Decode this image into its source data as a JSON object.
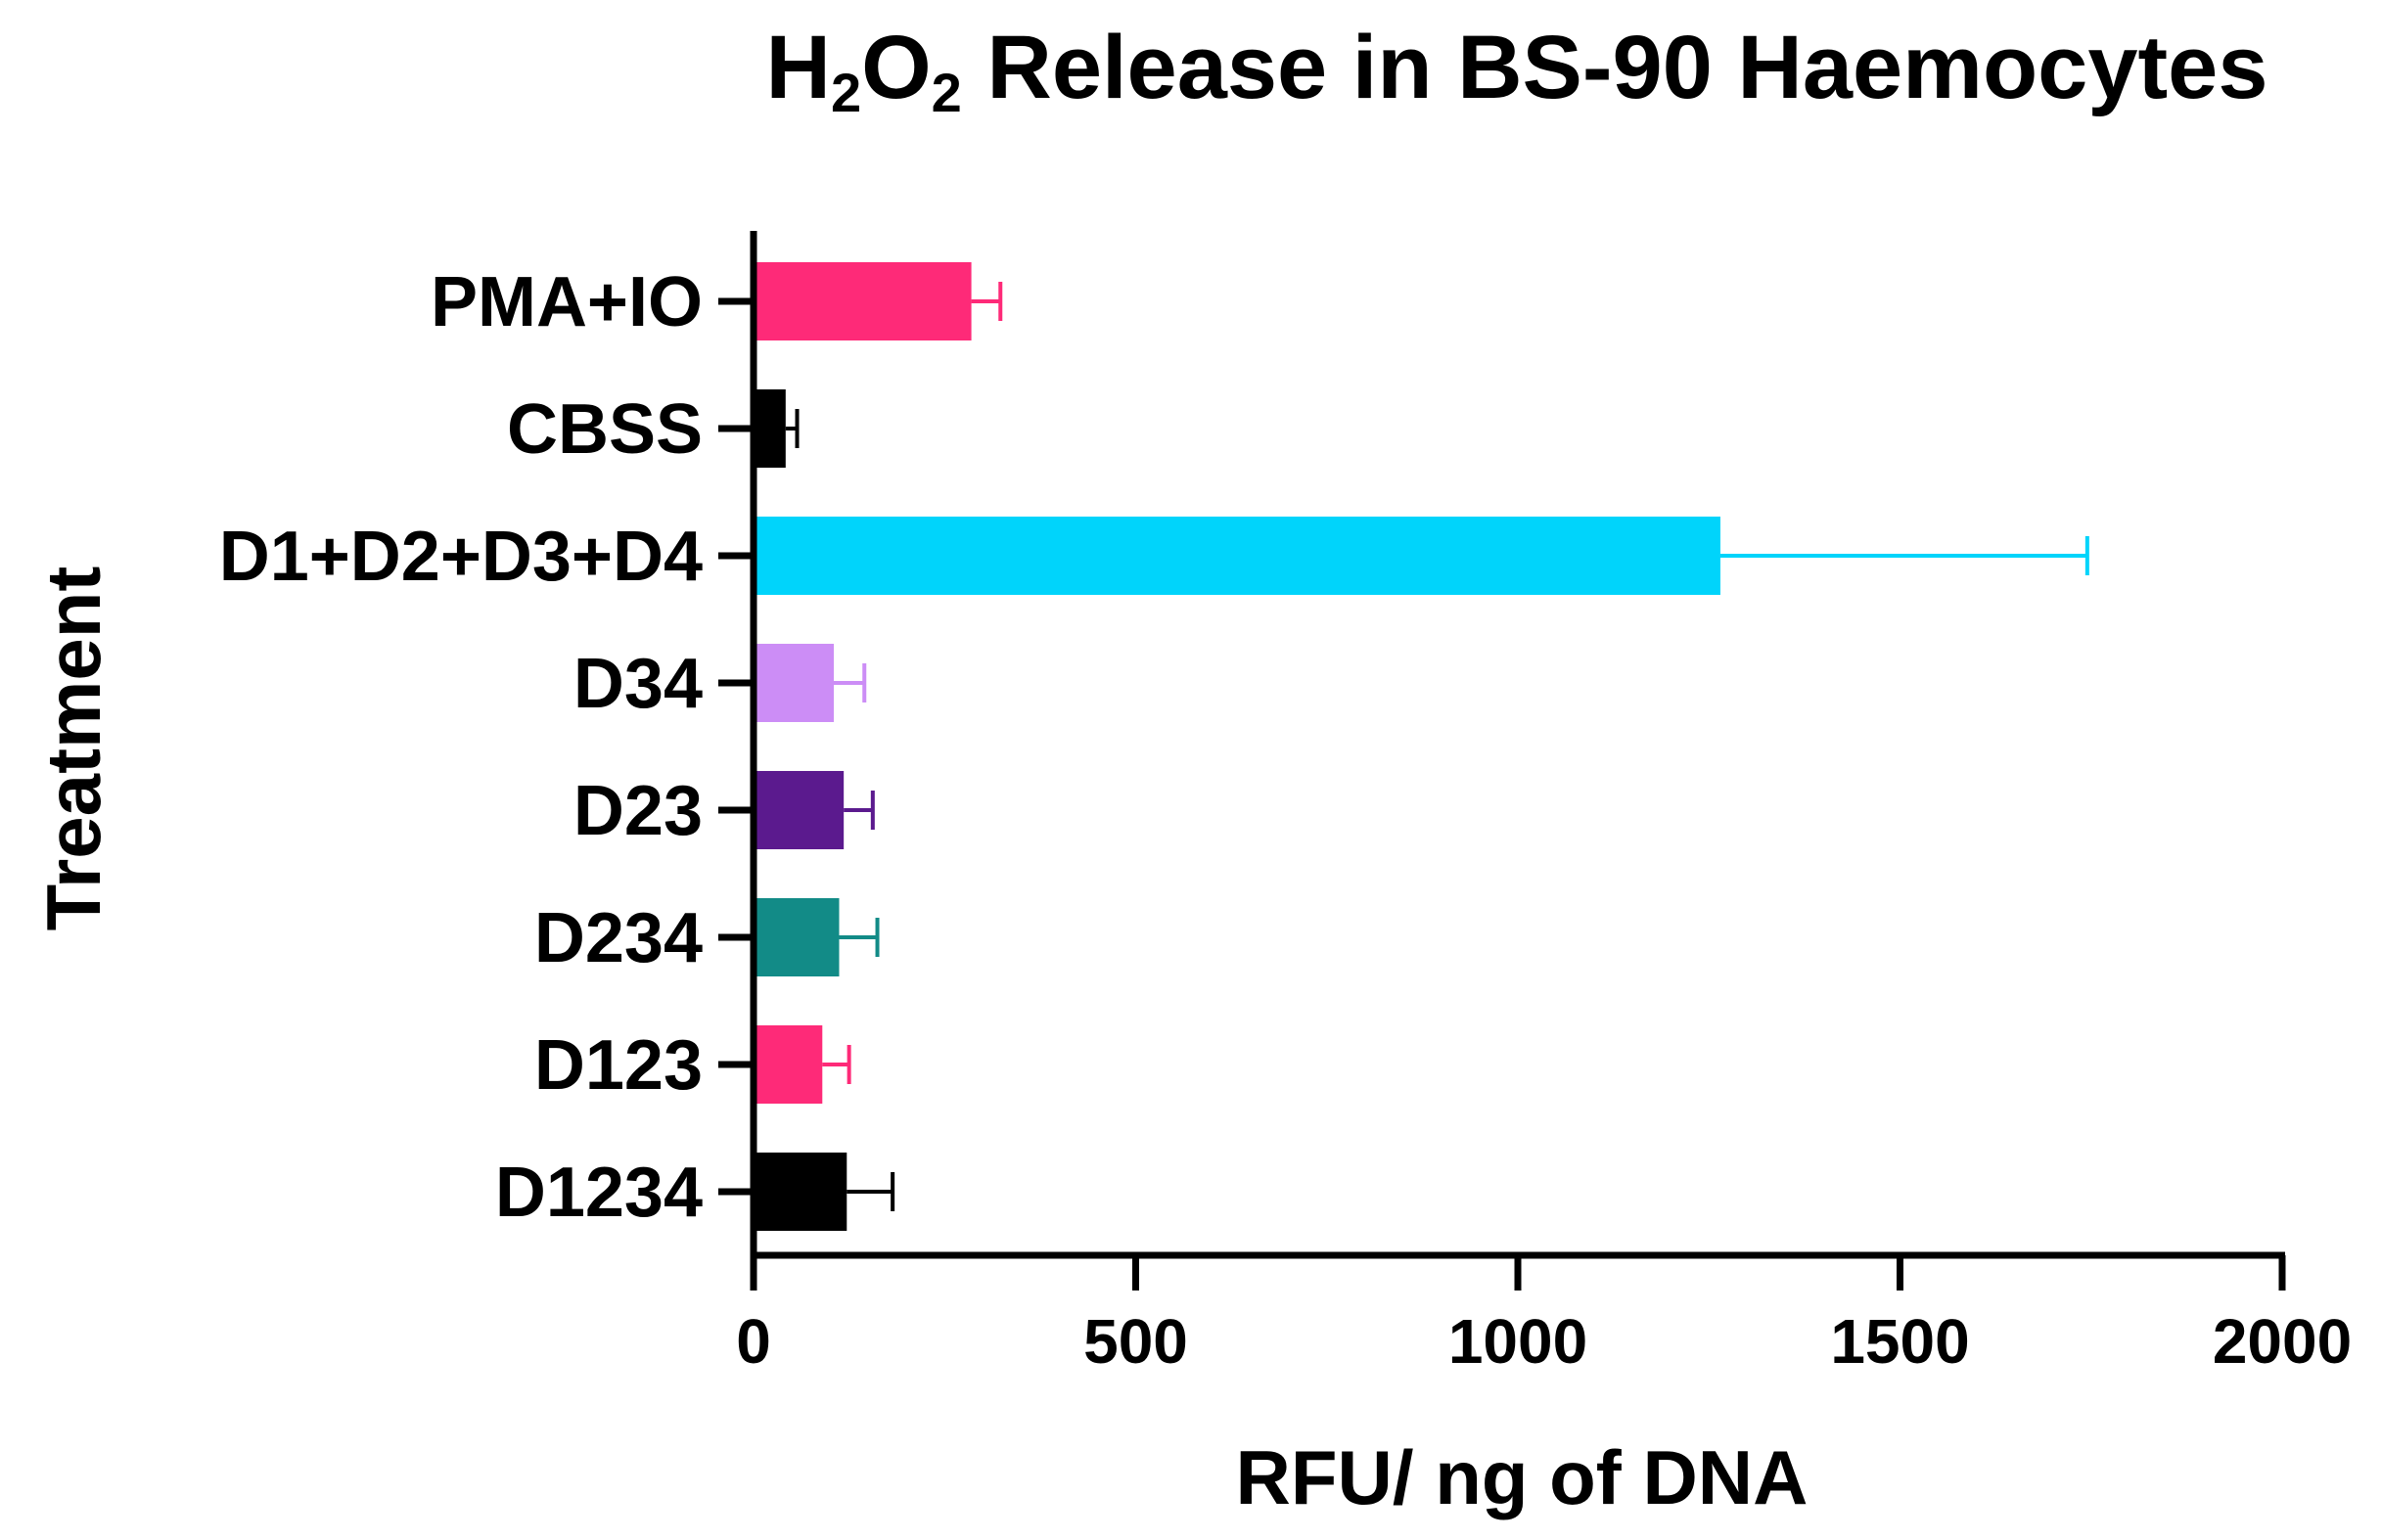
{
  "chart_data": {
    "type": "bar",
    "orientation": "horizontal",
    "title": {
      "parts": [
        {
          "text": "H",
          "sub": false
        },
        {
          "text": "2",
          "sub": true
        },
        {
          "text": "O",
          "sub": false
        },
        {
          "text": "2",
          "sub": true
        },
        {
          "text": " Release in BS-90 Haemocytes",
          "sub": false
        }
      ]
    },
    "xlabel": "RFU/ ng of DNA",
    "ylabel": "Treatment",
    "xlim": [
      0,
      2000
    ],
    "xticks": [
      0,
      500,
      1000,
      1500,
      2000
    ],
    "categories": [
      "PMA+IO",
      "CBSS",
      "D1+D2+D3+D4",
      "D34",
      "D23",
      "D234",
      "D123",
      "D1234"
    ],
    "values": [
      285,
      42,
      1265,
      105,
      118,
      112,
      90,
      122
    ],
    "errors": [
      38,
      15,
      480,
      40,
      38,
      50,
      35,
      60
    ],
    "colors": [
      "#fe2a78",
      "#000000",
      "#00d4fb",
      "#cc8df6",
      "#5b1a8e",
      "#128b87",
      "#fe2a78",
      "#000000"
    ],
    "grid": false,
    "legend": "none"
  }
}
